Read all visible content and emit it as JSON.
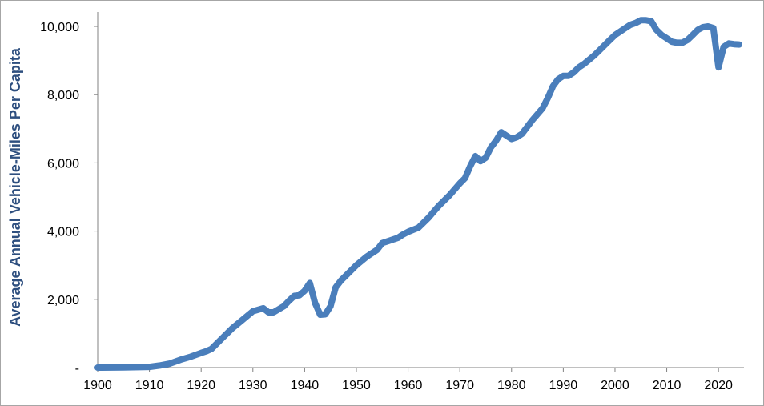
{
  "chart_data": {
    "type": "line",
    "title": "",
    "xlabel": "",
    "ylabel": "Average Annual Vehicle-Miles Per Capita",
    "xlim": [
      1900,
      2024
    ],
    "ylim": [
      0,
      10000
    ],
    "x_ticks": [
      1900,
      1910,
      1920,
      1930,
      1940,
      1950,
      1960,
      1970,
      1980,
      1990,
      2000,
      2010,
      2020
    ],
    "x_tick_labels": [
      "1900",
      "1910",
      "1920",
      "1930",
      "1940",
      "1950",
      "1960",
      "1970",
      "1980",
      "1990",
      "2000",
      "2010",
      "2020"
    ],
    "y_ticks": [
      0,
      2000,
      4000,
      6000,
      8000,
      10000
    ],
    "y_tick_labels": [
      "-",
      "2,000",
      "4,000",
      "6,000",
      "8,000",
      "10,000"
    ],
    "grid": false,
    "legend": "none",
    "colors": {
      "line": "#4a7ebb",
      "ylabel": "#2e4f7f",
      "axis": "#808080"
    },
    "series": [
      {
        "x": [
          1900,
          1905,
          1910,
          1912,
          1914,
          1916,
          1918,
          1920,
          1921,
          1922,
          1924,
          1926,
          1928,
          1930,
          1932,
          1933,
          1934,
          1936,
          1937,
          1938,
          1939,
          1940,
          1941,
          1942,
          1943,
          1944,
          1945,
          1946,
          1947,
          1948,
          1950,
          1952,
          1954,
          1955,
          1956,
          1958,
          1959,
          1960,
          1962,
          1964,
          1965,
          1966,
          1968,
          1970,
          1971,
          1972,
          1973,
          1974,
          1975,
          1976,
          1977,
          1978,
          1979,
          1980,
          1981,
          1982,
          1984,
          1986,
          1987,
          1988,
          1989,
          1990,
          1991,
          1992,
          1993,
          1994,
          1996,
          1997,
          1998,
          1999,
          2000,
          2001,
          2002,
          2003,
          2004,
          2005,
          2006,
          2007,
          2008,
          2009,
          2010,
          2011,
          2012,
          2013,
          2014,
          2015,
          2016,
          2017,
          2018,
          2019,
          2020,
          2021,
          2022,
          2023,
          2024
        ],
        "y": [
          0,
          5,
          20,
          60,
          120,
          230,
          320,
          430,
          480,
          550,
          850,
          1150,
          1400,
          1650,
          1740,
          1620,
          1620,
          1800,
          1960,
          2100,
          2120,
          2250,
          2480,
          1900,
          1550,
          1560,
          1800,
          2350,
          2550,
          2700,
          3000,
          3250,
          3450,
          3650,
          3700,
          3800,
          3900,
          3980,
          4100,
          4400,
          4580,
          4750,
          5050,
          5400,
          5550,
          5900,
          6200,
          6050,
          6150,
          6450,
          6650,
          6900,
          6800,
          6700,
          6750,
          6850,
          7250,
          7600,
          7900,
          8250,
          8450,
          8550,
          8550,
          8650,
          8800,
          8900,
          9150,
          9300,
          9450,
          9600,
          9750,
          9850,
          9950,
          10050,
          10100,
          10180,
          10180,
          10150,
          9900,
          9750,
          9650,
          9550,
          9520,
          9520,
          9600,
          9750,
          9900,
          9980,
          10000,
          9950,
          8800,
          9400,
          9500,
          9480,
          9470
        ]
      }
    ]
  }
}
